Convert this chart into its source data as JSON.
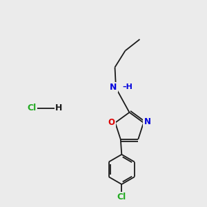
{
  "bg": "#ebebeb",
  "bond_color": "#1a1a1a",
  "N_color": "#0000dd",
  "O_color": "#dd0000",
  "Cl_color": "#22aa22",
  "lw": 1.3,
  "fs": 7.5,
  "xlim": [
    0,
    10
  ],
  "ylim": [
    0,
    10
  ]
}
